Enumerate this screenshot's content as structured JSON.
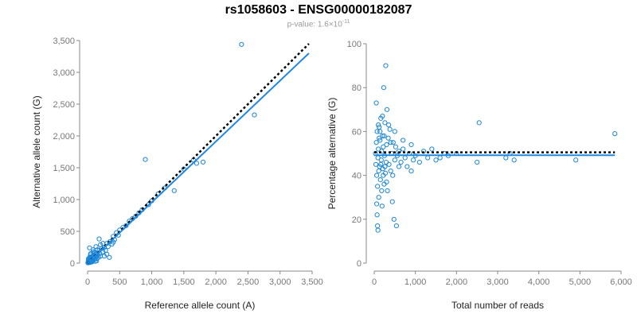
{
  "title": "rs1058603 - ENSG00000182087",
  "subtitle": {
    "prefix": "p-value: 1.6×10",
    "exponent": "-11"
  },
  "colors": {
    "points": "#1a86d6",
    "fit": "#1e88e5",
    "reference": "#000000"
  },
  "chart_data": [
    {
      "type": "scatter",
      "xlabel": "Reference allele count (A)",
      "ylabel": "Alternative allele count (G)",
      "xlim": [
        0,
        3500
      ],
      "ylim": [
        0,
        3500
      ],
      "xticks": [
        "0",
        "500",
        "1,000",
        "1,500",
        "2,000",
        "2,500",
        "3,000",
        "3,500"
      ],
      "yticks": [
        "0",
        "500",
        "1,000",
        "1,500",
        "2,000",
        "2,500",
        "3,000",
        "3,500"
      ],
      "grid": false,
      "points": [
        [
          10,
          15
        ],
        [
          15,
          25
        ],
        [
          20,
          8
        ],
        [
          25,
          40
        ],
        [
          30,
          20
        ],
        [
          35,
          55
        ],
        [
          40,
          30
        ],
        [
          45,
          12
        ],
        [
          50,
          70
        ],
        [
          55,
          45
        ],
        [
          60,
          25
        ],
        [
          65,
          90
        ],
        [
          70,
          60
        ],
        [
          75,
          35
        ],
        [
          80,
          110
        ],
        [
          85,
          75
        ],
        [
          90,
          50
        ],
        [
          95,
          130
        ],
        [
          100,
          85
        ],
        [
          110,
          60
        ],
        [
          120,
          140
        ],
        [
          130,
          100
        ],
        [
          140,
          70
        ],
        [
          150,
          160
        ],
        [
          160,
          120
        ],
        [
          170,
          90
        ],
        [
          180,
          200
        ],
        [
          190,
          150
        ],
        [
          200,
          110
        ],
        [
          220,
          230
        ],
        [
          240,
          180
        ],
        [
          260,
          250
        ],
        [
          280,
          200
        ],
        [
          300,
          310
        ],
        [
          320,
          260
        ],
        [
          340,
          90
        ],
        [
          350,
          340
        ],
        [
          380,
          300
        ],
        [
          400,
          420
        ],
        [
          420,
          370
        ],
        [
          450,
          480
        ],
        [
          480,
          440
        ],
        [
          500,
          520
        ],
        [
          550,
          560
        ],
        [
          600,
          590
        ],
        [
          650,
          660
        ],
        [
          700,
          700
        ],
        [
          750,
          740
        ],
        [
          800,
          790
        ],
        [
          850,
          840
        ],
        [
          900,
          1630
        ],
        [
          950,
          920
        ],
        [
          1000,
          980
        ],
        [
          1100,
          1090
        ],
        [
          1200,
          1180
        ],
        [
          1350,
          1140
        ],
        [
          1500,
          1480
        ],
        [
          1650,
          1620
        ],
        [
          1700,
          1570
        ],
        [
          1800,
          1590
        ],
        [
          2400,
          3440
        ],
        [
          2600,
          2330
        ],
        [
          30,
          240
        ],
        [
          50,
          150
        ],
        [
          120,
          30
        ],
        [
          180,
          380
        ],
        [
          260,
          110
        ],
        [
          150,
          210
        ],
        [
          90,
          180
        ],
        [
          60,
          100
        ],
        [
          130,
          260
        ],
        [
          200,
          290
        ],
        [
          300,
          140
        ],
        [
          400,
          330
        ],
        [
          70,
          20
        ],
        [
          110,
          170
        ],
        [
          140,
          35
        ],
        [
          240,
          310
        ],
        [
          45,
          130
        ],
        [
          85,
          210
        ],
        [
          20,
          60
        ],
        [
          35,
          95
        ],
        [
          10,
          40
        ],
        [
          5,
          5
        ],
        [
          25,
          10
        ],
        [
          15,
          70
        ]
      ],
      "fit_line": [
        [
          0,
          0
        ],
        [
          3450,
          3300
        ]
      ],
      "reference_line": [
        [
          0,
          0
        ],
        [
          3450,
          3450
        ]
      ]
    },
    {
      "type": "scatter",
      "xlabel": "Total number of reads",
      "ylabel": "Percentage alternative (G)",
      "xlim": [
        0,
        6000
      ],
      "ylim": [
        0,
        100
      ],
      "xticks": [
        "0",
        "1,000",
        "2,000",
        "3,000",
        "4,000",
        "5,000",
        "6,000"
      ],
      "yticks": [
        "0",
        "20",
        "40",
        "60",
        "80",
        "100"
      ],
      "grid": false,
      "points": [
        [
          30,
          50
        ],
        [
          40,
          45
        ],
        [
          50,
          55
        ],
        [
          60,
          40
        ],
        [
          70,
          60
        ],
        [
          80,
          35
        ],
        [
          90,
          48
        ],
        [
          100,
          52
        ],
        [
          110,
          30
        ],
        [
          120,
          62
        ],
        [
          130,
          44
        ],
        [
          140,
          56
        ],
        [
          150,
          38
        ],
        [
          160,
          66
        ],
        [
          170,
          47
        ],
        [
          180,
          51
        ],
        [
          190,
          26
        ],
        [
          200,
          58
        ],
        [
          210,
          43
        ],
        [
          220,
          53
        ],
        [
          230,
          80
        ],
        [
          240,
          36
        ],
        [
          250,
          49
        ],
        [
          260,
          64
        ],
        [
          270,
          41
        ],
        [
          280,
          90
        ],
        [
          290,
          46
        ],
        [
          300,
          54
        ],
        [
          310,
          70
        ],
        [
          320,
          33
        ],
        [
          340,
          57
        ],
        [
          360,
          45
        ],
        [
          380,
          61
        ],
        [
          400,
          42
        ],
        [
          420,
          50
        ],
        [
          440,
          28
        ],
        [
          460,
          55
        ],
        [
          480,
          20
        ],
        [
          500,
          47
        ],
        [
          520,
          53
        ],
        [
          540,
          17
        ],
        [
          560,
          49
        ],
        [
          600,
          51
        ],
        [
          650,
          46
        ],
        [
          700,
          52
        ],
        [
          750,
          48
        ],
        [
          800,
          44
        ],
        [
          850,
          50
        ],
        [
          900,
          54
        ],
        [
          950,
          47
        ],
        [
          1000,
          49
        ],
        [
          1100,
          46
        ],
        [
          1200,
          51
        ],
        [
          1300,
          48
        ],
        [
          1400,
          52
        ],
        [
          1500,
          47
        ],
        [
          1600,
          48
        ],
        [
          1700,
          50
        ],
        [
          1800,
          49
        ],
        [
          2000,
          50
        ],
        [
          2500,
          46
        ],
        [
          2550,
          64
        ],
        [
          3200,
          48
        ],
        [
          3300,
          50
        ],
        [
          3400,
          47
        ],
        [
          4900,
          47
        ],
        [
          5850,
          59
        ],
        [
          50,
          73
        ],
        [
          60,
          27
        ],
        [
          70,
          22
        ],
        [
          80,
          17
        ],
        [
          90,
          15
        ],
        [
          100,
          63
        ],
        [
          110,
          42
        ],
        [
          120,
          57
        ],
        [
          140,
          60
        ],
        [
          160,
          45
        ],
        [
          180,
          33
        ],
        [
          200,
          67
        ],
        [
          220,
          40
        ],
        [
          240,
          58
        ],
        [
          260,
          44
        ],
        [
          300,
          37
        ],
        [
          350,
          63
        ],
        [
          400,
          55
        ],
        [
          450,
          40
        ],
        [
          500,
          60
        ],
        [
          600,
          44
        ],
        [
          700,
          56
        ],
        [
          900,
          42
        ]
      ],
      "fit_line": [
        [
          0,
          49.2
        ],
        [
          5850,
          49.2
        ]
      ],
      "reference_line": [
        [
          0,
          50.5
        ],
        [
          5850,
          50.5
        ]
      ]
    }
  ]
}
